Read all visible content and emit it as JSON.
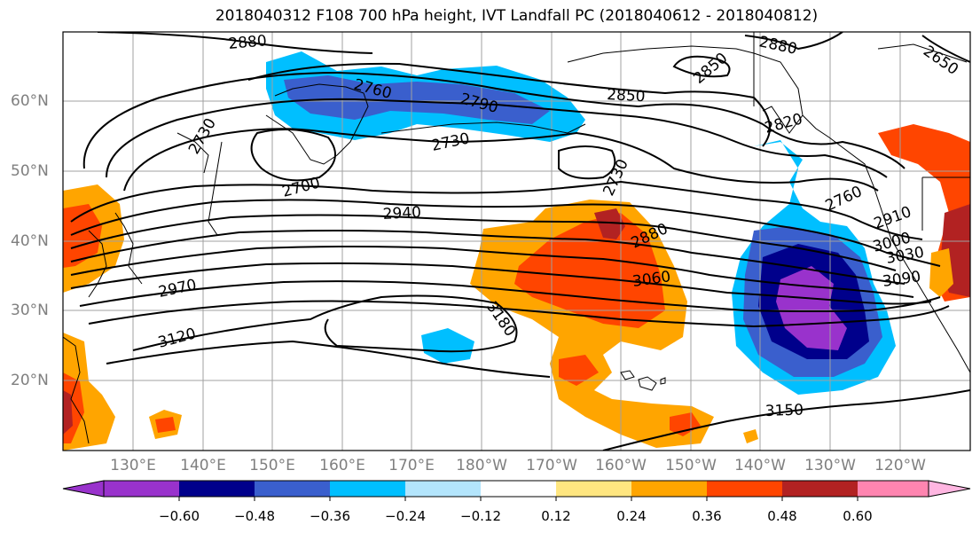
{
  "title": "2018040312 F108 700 hPa height, IVT Landfall PC (2018040612 - 2018040812)",
  "lat_labels": [
    "60°N",
    "50°N",
    "40°N",
    "30°N",
    "20°N"
  ],
  "lon_labels": [
    "130°E",
    "140°E",
    "150°E",
    "160°E",
    "170°E",
    "180°W",
    "170°W",
    "160°W",
    "150°W",
    "140°W",
    "130°W",
    "120°W"
  ],
  "contour_labels": {
    "c2880a": "2880",
    "c2880b": "2880",
    "c2850a": "2850",
    "c2850b": "2850",
    "c2650": "2650",
    "c2760a": "2760",
    "c2790": "2790",
    "c2730a": "2730",
    "c2730b": "2730",
    "c2730c": "2730",
    "c2700": "2700",
    "c2940": "2940",
    "c2820": "2820",
    "c2880c": "2880",
    "c2760b": "2760",
    "c2910": "2910",
    "c3000": "3000",
    "c3030": "3030",
    "c3060": "3060",
    "c3090": "3090",
    "c2970": "2970",
    "c3180": "3180",
    "c3120": "3120",
    "c3150": "3150"
  },
  "colorbar": {
    "ticks": [
      "−0.60",
      "−0.48",
      "−0.36",
      "−0.24",
      "−0.12",
      "0.12",
      "0.24",
      "0.36",
      "0.48",
      "0.60"
    ],
    "colors": [
      "#9932cc",
      "#00008b",
      "#3a5fcd",
      "#00bfff",
      "#b3e5fc",
      "#ffffff",
      "#ffe680",
      "#ffa500",
      "#ff4500",
      "#b22222",
      "#ff85b0",
      "#ffb6e1"
    ]
  }
}
